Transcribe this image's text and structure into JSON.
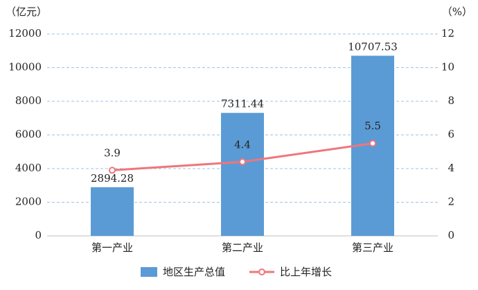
{
  "chart_data": {
    "type": "bar",
    "y_label": "（亿元）",
    "y2_label": "（%）",
    "categories": [
      "第一产业",
      "第二产业",
      "第三产业"
    ],
    "series": [
      {
        "name": "地区生产总值",
        "type": "bar",
        "color": "#5b9bd5",
        "values": [
          2894.28,
          7311.44,
          10707.53
        ]
      },
      {
        "name": "比上年增长",
        "type": "line",
        "axis": "y2",
        "color": "#f0757c",
        "values": [
          3.9,
          4.4,
          5.5
        ]
      }
    ],
    "ylim": [
      0,
      12000
    ],
    "yticks": [
      0,
      2000,
      4000,
      6000,
      8000,
      10000,
      12000
    ],
    "y2lim": [
      0,
      12
    ],
    "y2ticks": [
      0,
      2,
      4,
      6,
      8,
      10,
      12
    ],
    "grid": true,
    "legend": "bottom"
  }
}
